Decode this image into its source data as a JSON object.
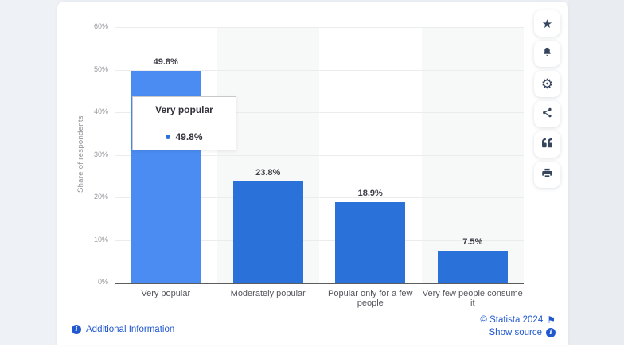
{
  "chart_data": {
    "type": "bar",
    "categories": [
      "Very popular",
      "Moderately popular",
      "Popular only for a few people",
      "Very few people consume it"
    ],
    "values": [
      49.8,
      23.8,
      18.9,
      7.5
    ],
    "value_labels": [
      "49.8%",
      "23.8%",
      "18.9%",
      "7.5%"
    ],
    "title": "",
    "xlabel": "",
    "ylabel": "Share of respondents",
    "ylim": [
      0,
      60
    ],
    "yticks": [
      "0%",
      "10%",
      "20%",
      "30%",
      "40%",
      "50%",
      "60%"
    ],
    "grid": true,
    "legend": "none",
    "highlighted_index": 0
  },
  "tooltip": {
    "title": "Very popular",
    "value": "49.8%"
  },
  "toolbar": {
    "buttons": [
      {
        "name": "favorite",
        "icon": "star-icon"
      },
      {
        "name": "notifications",
        "icon": "bell-icon"
      },
      {
        "name": "settings",
        "icon": "gear-icon"
      },
      {
        "name": "share",
        "icon": "share-icon"
      },
      {
        "name": "cite",
        "icon": "quote-icon"
      },
      {
        "name": "print",
        "icon": "printer-icon"
      }
    ]
  },
  "footer": {
    "additional_info": "Additional Information",
    "copyright": "© Statista 2024",
    "show_source": "Show source"
  },
  "icons": {
    "star": "★",
    "gear": "⚙",
    "flag": "⚑",
    "info": "i"
  },
  "colors": {
    "bar": "#2a72da",
    "bar_highlight": "#4a8cf2",
    "band_shade": "#f7f8f8",
    "link": "#2158d0",
    "icon": "#36455e"
  }
}
